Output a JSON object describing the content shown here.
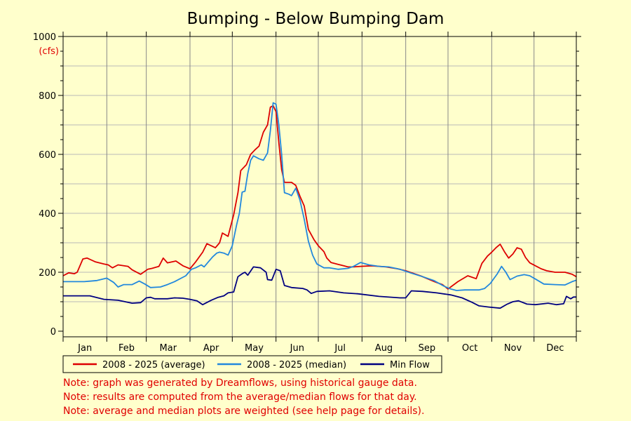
{
  "chart_data": {
    "type": "line",
    "title": "Bumping - Below Bumping Dam",
    "ylabel": "(cfs)",
    "ylim": [
      0,
      1000
    ],
    "yticks": [
      0,
      200,
      400,
      600,
      800,
      1000
    ],
    "grid": true,
    "legend_position": "bottom-left",
    "x_unit": "day of year",
    "xlim": [
      1,
      365
    ],
    "month_labels": [
      "Jan",
      "Feb",
      "Mar",
      "Apr",
      "May",
      "Jun",
      "Jul",
      "Aug",
      "Sep",
      "Oct",
      "Nov",
      "Dec"
    ],
    "month_boundaries": [
      1,
      32,
      60,
      91,
      121,
      152,
      182,
      213,
      244,
      274,
      305,
      335,
      365
    ],
    "series": [
      {
        "name": "2008 - 2025 (average)",
        "color": "#dd0000",
        "points": [
          [
            1,
            188
          ],
          [
            5,
            198
          ],
          [
            9,
            195
          ],
          [
            11,
            200
          ],
          [
            15,
            245
          ],
          [
            18,
            248
          ],
          [
            24,
            235
          ],
          [
            30,
            228
          ],
          [
            33,
            225
          ],
          [
            36,
            215
          ],
          [
            40,
            225
          ],
          [
            47,
            220
          ],
          [
            50,
            208
          ],
          [
            56,
            193
          ],
          [
            61,
            210
          ],
          [
            64,
            213
          ],
          [
            69,
            220
          ],
          [
            72,
            248
          ],
          [
            75,
            232
          ],
          [
            81,
            238
          ],
          [
            86,
            222
          ],
          [
            91,
            212
          ],
          [
            95,
            235
          ],
          [
            100,
            268
          ],
          [
            103,
            297
          ],
          [
            106,
            290
          ],
          [
            109,
            283
          ],
          [
            112,
            300
          ],
          [
            114,
            333
          ],
          [
            118,
            322
          ],
          [
            122,
            395
          ],
          [
            125,
            470
          ],
          [
            127,
            545
          ],
          [
            131,
            565
          ],
          [
            134,
            600
          ],
          [
            137,
            615
          ],
          [
            140,
            628
          ],
          [
            143,
            675
          ],
          [
            146,
            700
          ],
          [
            148,
            760
          ],
          [
            150,
            765
          ],
          [
            152,
            745
          ],
          [
            154,
            640
          ],
          [
            156,
            548
          ],
          [
            158,
            505
          ],
          [
            163,
            505
          ],
          [
            166,
            495
          ],
          [
            169,
            458
          ],
          [
            172,
            425
          ],
          [
            175,
            345
          ],
          [
            179,
            310
          ],
          [
            182,
            290
          ],
          [
            186,
            270
          ],
          [
            188,
            248
          ],
          [
            191,
            233
          ],
          [
            196,
            227
          ],
          [
            200,
            222
          ],
          [
            203,
            218
          ],
          [
            207,
            218
          ],
          [
            212,
            220
          ],
          [
            220,
            222
          ],
          [
            230,
            218
          ],
          [
            238,
            212
          ],
          [
            244,
            205
          ],
          [
            255,
            187
          ],
          [
            265,
            167
          ],
          [
            270,
            158
          ],
          [
            274,
            143
          ],
          [
            281,
            168
          ],
          [
            288,
            188
          ],
          [
            294,
            178
          ],
          [
            298,
            230
          ],
          [
            302,
            255
          ],
          [
            305,
            268
          ],
          [
            308,
            283
          ],
          [
            311,
            295
          ],
          [
            314,
            270
          ],
          [
            317,
            248
          ],
          [
            320,
            262
          ],
          [
            323,
            283
          ],
          [
            326,
            278
          ],
          [
            329,
            250
          ],
          [
            332,
            232
          ],
          [
            336,
            222
          ],
          [
            340,
            212
          ],
          [
            344,
            205
          ],
          [
            350,
            200
          ],
          [
            357,
            200
          ],
          [
            362,
            193
          ],
          [
            365,
            185
          ]
        ]
      },
      {
        "name": "2008 - 2025 (median)",
        "color": "#2288dd",
        "points": [
          [
            1,
            168
          ],
          [
            8,
            168
          ],
          [
            16,
            168
          ],
          [
            25,
            172
          ],
          [
            32,
            180
          ],
          [
            37,
            165
          ],
          [
            40,
            150
          ],
          [
            44,
            158
          ],
          [
            50,
            158
          ],
          [
            55,
            170
          ],
          [
            59,
            160
          ],
          [
            63,
            148
          ],
          [
            70,
            150
          ],
          [
            75,
            158
          ],
          [
            80,
            168
          ],
          [
            88,
            188
          ],
          [
            92,
            210
          ],
          [
            95,
            215
          ],
          [
            99,
            225
          ],
          [
            101,
            218
          ],
          [
            104,
            235
          ],
          [
            107,
            252
          ],
          [
            110,
            265
          ],
          [
            112,
            268
          ],
          [
            115,
            265
          ],
          [
            118,
            258
          ],
          [
            121,
            290
          ],
          [
            124,
            360
          ],
          [
            126,
            400
          ],
          [
            128,
            472
          ],
          [
            130,
            475
          ],
          [
            132,
            535
          ],
          [
            134,
            580
          ],
          [
            136,
            595
          ],
          [
            140,
            585
          ],
          [
            143,
            580
          ],
          [
            146,
            605
          ],
          [
            148,
            680
          ],
          [
            150,
            775
          ],
          [
            152,
            770
          ],
          [
            154,
            700
          ],
          [
            156,
            600
          ],
          [
            158,
            470
          ],
          [
            161,
            465
          ],
          [
            163,
            460
          ],
          [
            166,
            485
          ],
          [
            169,
            445
          ],
          [
            172,
            380
          ],
          [
            175,
            305
          ],
          [
            178,
            258
          ],
          [
            181,
            228
          ],
          [
            186,
            215
          ],
          [
            190,
            215
          ],
          [
            196,
            210
          ],
          [
            203,
            213
          ],
          [
            207,
            220
          ],
          [
            212,
            233
          ],
          [
            218,
            225
          ],
          [
            225,
            220
          ],
          [
            232,
            218
          ],
          [
            240,
            210
          ],
          [
            248,
            197
          ],
          [
            256,
            185
          ],
          [
            264,
            172
          ],
          [
            271,
            153
          ],
          [
            276,
            143
          ],
          [
            280,
            138
          ],
          [
            286,
            140
          ],
          [
            296,
            140
          ],
          [
            300,
            145
          ],
          [
            304,
            162
          ],
          [
            309,
            195
          ],
          [
            312,
            220
          ],
          [
            315,
            200
          ],
          [
            318,
            175
          ],
          [
            323,
            187
          ],
          [
            328,
            192
          ],
          [
            332,
            188
          ],
          [
            336,
            177
          ],
          [
            342,
            160
          ],
          [
            350,
            158
          ],
          [
            357,
            157
          ],
          [
            362,
            168
          ],
          [
            365,
            173
          ]
        ]
      },
      {
        "name": "Min Flow",
        "color": "#000080",
        "points": [
          [
            1,
            120
          ],
          [
            10,
            120
          ],
          [
            20,
            120
          ],
          [
            30,
            108
          ],
          [
            40,
            105
          ],
          [
            50,
            95
          ],
          [
            56,
            97
          ],
          [
            60,
            113
          ],
          [
            63,
            115
          ],
          [
            66,
            110
          ],
          [
            75,
            110
          ],
          [
            80,
            113
          ],
          [
            86,
            112
          ],
          [
            91,
            108
          ],
          [
            96,
            103
          ],
          [
            100,
            90
          ],
          [
            106,
            105
          ],
          [
            111,
            115
          ],
          [
            115,
            120
          ],
          [
            118,
            130
          ],
          [
            122,
            133
          ],
          [
            125,
            185
          ],
          [
            128,
            195
          ],
          [
            130,
            200
          ],
          [
            132,
            190
          ],
          [
            136,
            218
          ],
          [
            141,
            215
          ],
          [
            145,
            200
          ],
          [
            146,
            175
          ],
          [
            149,
            173
          ],
          [
            152,
            210
          ],
          [
            155,
            205
          ],
          [
            158,
            155
          ],
          [
            163,
            148
          ],
          [
            171,
            145
          ],
          [
            174,
            140
          ],
          [
            177,
            128
          ],
          [
            181,
            135
          ],
          [
            190,
            137
          ],
          [
            200,
            130
          ],
          [
            210,
            127
          ],
          [
            225,
            118
          ],
          [
            240,
            113
          ],
          [
            244,
            113
          ],
          [
            248,
            137
          ],
          [
            256,
            135
          ],
          [
            266,
            130
          ],
          [
            276,
            123
          ],
          [
            284,
            113
          ],
          [
            291,
            98
          ],
          [
            296,
            86
          ],
          [
            303,
            82
          ],
          [
            311,
            78
          ],
          [
            316,
            92
          ],
          [
            320,
            100
          ],
          [
            324,
            103
          ],
          [
            330,
            92
          ],
          [
            336,
            90
          ],
          [
            345,
            95
          ],
          [
            351,
            90
          ],
          [
            356,
            93
          ],
          [
            358,
            118
          ],
          [
            361,
            110
          ],
          [
            363,
            116
          ],
          [
            365,
            116
          ]
        ]
      }
    ]
  },
  "notes": [
    "Note: graph was generated by Dreamflows, using historical gauge data.",
    "Note: results are computed from the average/median flows for that day.",
    "Note: average and median plots are weighted (see help page for details)."
  ]
}
